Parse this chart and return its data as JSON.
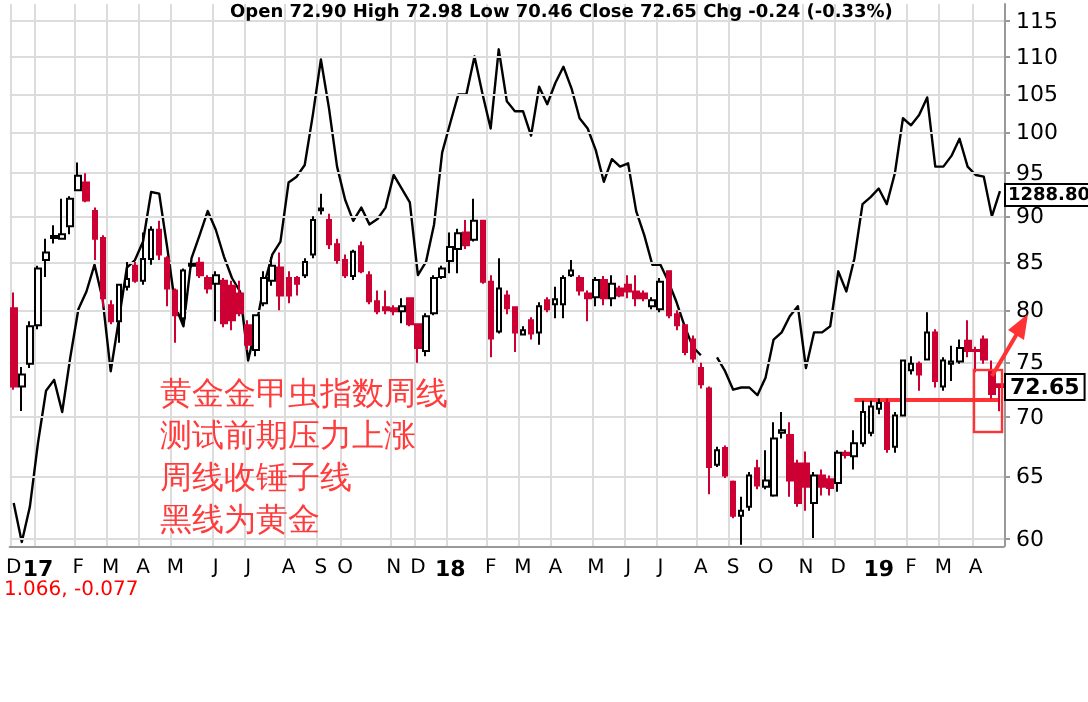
{
  "chart_data": {
    "type": "candlestick",
    "subtitle": "Open 72.90 High 72.98 Low 70.46 Close 72.65 Chg -0.24 (-0.33%)",
    "categories": [
      "D",
      null,
      null,
      "17",
      null,
      null,
      null,
      null,
      "F",
      null,
      null,
      null,
      "M",
      null,
      null,
      null,
      "A",
      null,
      null,
      null,
      "M",
      null,
      null,
      null,
      null,
      "J",
      null,
      null,
      null,
      "J",
      null,
      null,
      null,
      null,
      "A",
      null,
      null,
      null,
      "S",
      null,
      null,
      "O",
      null,
      null,
      null,
      null,
      null,
      "N",
      null,
      null,
      "D",
      null,
      null,
      null,
      "18",
      null,
      null,
      null,
      null,
      "F",
      null,
      null,
      null,
      "M",
      null,
      null,
      null,
      "A",
      null,
      null,
      null,
      null,
      "M",
      null,
      null,
      null,
      "J",
      null,
      null,
      null,
      "J",
      null,
      null,
      null,
      null,
      "A",
      null,
      null,
      null,
      "S",
      null,
      null,
      null,
      "O",
      null,
      null,
      null,
      null,
      "N",
      null,
      null,
      null,
      "D",
      null,
      null,
      null,
      null,
      "19",
      null,
      null,
      null,
      "F",
      null,
      null,
      null,
      "M",
      null,
      null,
      null,
      "A",
      null,
      null,
      null
    ],
    "series": [
      {
        "colors": [
          "#cc0033",
          "#ffffff",
          "#ffffff",
          "#ffffff",
          "#ffffff",
          "#ffffff",
          "#ffffff",
          "#ffffff",
          "#ffffff",
          "#cc0033",
          "#cc0033",
          "#cc0033",
          "#cc0033",
          "#ffffff",
          "#ffffff",
          "#cc0033",
          "#ffffff",
          "#ffffff",
          "#cc0033",
          "#cc0033",
          "#cc0033",
          "#ffffff",
          "#ffffff",
          "#cc0033",
          "#cc0033",
          "#ffffff",
          "#cc0033",
          "#cc0033",
          "#cc0033",
          "#cc0033",
          "#ffffff",
          "#ffffff",
          "#ffffff",
          "#cc0033",
          "#cc0033",
          "#cc0033",
          "#ffffff",
          "#ffffff",
          "#ffffff",
          "#cc0033",
          "#cc0033",
          "#cc0033",
          "#ffffff",
          "#cc0033",
          "#cc0033",
          "#cc0033",
          "#cc0033",
          "#cc0033",
          "#ffffff",
          "#cc0033",
          "#cc0033",
          "#ffffff",
          "#ffffff",
          "#ffffff",
          "#ffffff",
          "#ffffff",
          "#cc0033",
          "#ffffff",
          "#cc0033",
          "#cc0033",
          "#ffffff",
          "#cc0033",
          "#cc0033",
          "#ffffff",
          "#cc0033",
          "#ffffff",
          "#cc0033",
          "#ffffff",
          "#ffffff",
          "#ffffff",
          "#cc0033",
          "#cc0033",
          "#ffffff",
          "#cc0033",
          "#ffffff",
          "#cc0033",
          "#cc0033",
          "#cc0033",
          "#cc0033",
          "#ffffff",
          "#ffffff",
          "#cc0033",
          "#cc0033",
          "#cc0033",
          "#cc0033",
          "#cc0033",
          "#cc0033",
          "#ffffff",
          "#cc0033",
          "#cc0033",
          "#ffffff",
          "#ffffff",
          "#cc0033",
          "#ffffff",
          "#ffffff",
          "#ffffff",
          "#cc0033",
          "#cc0033",
          "#cc0033",
          "#ffffff",
          "#cc0033",
          "#cc0033",
          "#ffffff",
          "#cc0033",
          "#ffffff",
          "#ffffff",
          "#ffffff",
          "#ffffff",
          "#cc0033",
          "#ffffff",
          "#ffffff",
          "#ffffff",
          "#cc0033",
          "#ffffff",
          "#cc0033",
          "#ffffff",
          "#ffffff",
          "#ffffff",
          "#cc0033",
          "#cc0033",
          "#cc0033",
          "#cc0033",
          "#cc0033"
        ],
        "ohlc": [
          [
            80.2,
            81.8,
            72.4,
            72.7
          ],
          [
            72.7,
            74.5,
            70.5,
            73.8
          ],
          [
            74.8,
            78.9,
            74.4,
            78.4
          ],
          [
            78.5,
            84.6,
            78.1,
            84.3
          ],
          [
            85.2,
            87.5,
            83.4,
            86.0
          ],
          [
            87.6,
            89.0,
            87.0,
            87.8
          ],
          [
            87.5,
            92.0,
            87.5,
            88.0
          ],
          [
            88.9,
            92.3,
            88.0,
            92.0
          ],
          [
            93.0,
            96.3,
            92.9,
            94.7
          ],
          [
            93.9,
            95.0,
            91.6,
            91.8
          ],
          [
            90.6,
            91.0,
            85.2,
            87.5
          ],
          [
            87.6,
            87.9,
            80.3,
            81.2
          ],
          [
            80.5,
            81.0,
            78.6,
            78.9
          ],
          [
            78.9,
            82.7,
            76.8,
            82.6
          ],
          [
            82.4,
            85.0,
            82.0,
            83.2
          ],
          [
            84.6,
            85.0,
            82.8,
            83.0
          ],
          [
            83.0,
            88.2,
            82.6,
            85.3
          ],
          [
            85.3,
            88.9,
            84.7,
            88.5
          ],
          [
            88.5,
            89.5,
            85.2,
            85.8
          ],
          [
            85.4,
            85.6,
            80.4,
            82.2
          ],
          [
            82.0,
            82.2,
            76.8,
            79.5
          ],
          [
            79.2,
            84.3,
            78.7,
            84.1
          ],
          [
            84.6,
            85.2,
            84.4,
            84.8
          ],
          [
            84.9,
            85.5,
            83.3,
            83.6
          ],
          [
            83.3,
            83.6,
            81.7,
            82.2
          ],
          [
            82.7,
            84.0,
            78.9,
            83.6
          ],
          [
            83.0,
            83.3,
            78.3,
            78.7
          ],
          [
            82.5,
            83.0,
            78.0,
            79.0
          ],
          [
            81.7,
            83.0,
            79.4,
            79.7
          ],
          [
            78.5,
            79.0,
            76.1,
            76.6
          ],
          [
            76.1,
            79.6,
            75.5,
            79.5
          ],
          [
            80.7,
            84.0,
            80.4,
            83.3
          ],
          [
            83.0,
            85.5,
            82.5,
            84.6
          ],
          [
            84.4,
            86.0,
            80.0,
            81.5
          ],
          [
            83.3,
            84.0,
            80.7,
            81.5
          ],
          [
            83.3,
            83.5,
            81.5,
            82.7
          ],
          [
            83.6,
            85.4,
            83.3,
            85.0
          ],
          [
            85.8,
            90.0,
            85.4,
            89.6
          ],
          [
            90.7,
            92.6,
            90.2,
            90.9
          ],
          [
            89.6,
            90.3,
            86.4,
            86.9
          ],
          [
            86.9,
            87.5,
            84.8,
            85.2
          ],
          [
            85.2,
            85.8,
            83.3,
            83.6
          ],
          [
            83.5,
            86.3,
            83.1,
            86.1
          ],
          [
            86.7,
            87.2,
            83.8,
            84.0
          ],
          [
            83.6,
            84.0,
            80.6,
            80.9
          ],
          [
            80.9,
            82.0,
            79.6,
            79.9
          ],
          [
            80.3,
            82.0,
            79.6,
            80.0
          ],
          [
            80.2,
            80.5,
            79.5,
            79.9
          ],
          [
            79.9,
            81.2,
            78.7,
            80.4
          ],
          [
            81.2,
            81.3,
            78.4,
            78.6
          ],
          [
            78.6,
            78.7,
            74.9,
            76.3
          ],
          [
            76.0,
            79.7,
            75.5,
            79.4
          ],
          [
            79.7,
            83.6,
            79.5,
            83.3
          ],
          [
            83.4,
            84.6,
            83.2,
            84.3
          ],
          [
            85.1,
            88.2,
            83.8,
            86.6
          ],
          [
            86.4,
            88.6,
            83.8,
            88.1
          ],
          [
            88.2,
            89.6,
            86.4,
            86.8
          ],
          [
            87.4,
            92.0,
            87.2,
            89.5
          ],
          [
            89.5,
            89.5,
            82.7,
            82.9
          ],
          [
            82.9,
            83.6,
            75.4,
            77.2
          ],
          [
            77.9,
            85.4,
            77.7,
            82.2
          ],
          [
            81.5,
            82.0,
            79.6,
            80.2
          ],
          [
            80.3,
            80.4,
            75.9,
            77.8
          ],
          [
            77.6,
            78.4,
            77.5,
            78.0
          ],
          [
            79.0,
            79.3,
            77.1,
            77.7
          ],
          [
            77.8,
            80.8,
            76.6,
            80.4
          ],
          [
            81.0,
            81.3,
            79.8,
            80.1
          ],
          [
            80.6,
            82.4,
            79.2,
            81.1
          ],
          [
            80.6,
            83.6,
            79.2,
            83.3
          ],
          [
            83.6,
            85.2,
            83.4,
            84.1
          ],
          [
            83.3,
            83.6,
            81.5,
            82.0
          ],
          [
            81.7,
            82.0,
            78.9,
            81.2
          ],
          [
            81.3,
            83.4,
            80.4,
            83.1
          ],
          [
            83.1,
            83.5,
            80.5,
            81.2
          ],
          [
            81.2,
            83.6,
            80.4,
            82.7
          ],
          [
            82.2,
            82.5,
            81.3,
            81.5
          ],
          [
            82.6,
            83.6,
            81.2,
            81.9
          ],
          [
            81.9,
            83.6,
            80.4,
            81.2
          ],
          [
            81.7,
            82.0,
            80.9,
            81.2
          ],
          [
            80.4,
            81.3,
            80.1,
            81.0
          ],
          [
            80.1,
            83.3,
            79.8,
            82.9
          ],
          [
            84.0,
            84.1,
            79.2,
            79.5
          ],
          [
            79.6,
            80.0,
            78.0,
            78.5
          ],
          [
            78.5,
            78.6,
            75.6,
            75.9
          ],
          [
            77.1,
            77.5,
            74.9,
            75.3
          ],
          [
            74.4,
            74.9,
            72.5,
            72.9
          ],
          [
            72.5,
            72.7,
            63.5,
            65.7
          ],
          [
            65.9,
            67.4,
            65.7,
            67.1
          ],
          [
            67.3,
            67.5,
            64.8,
            65.0
          ],
          [
            64.5,
            64.6,
            61.6,
            61.8
          ],
          [
            61.8,
            63.3,
            59.6,
            62.2
          ],
          [
            62.5,
            65.3,
            62.2,
            65.0
          ],
          [
            65.6,
            66.3,
            63.9,
            64.2
          ],
          [
            64.1,
            67.1,
            63.9,
            64.6
          ],
          [
            63.4,
            69.5,
            63.3,
            68.1
          ],
          [
            68.6,
            70.4,
            68.1,
            68.8
          ],
          [
            68.4,
            69.5,
            63.3,
            64.6
          ],
          [
            66.0,
            66.3,
            62.5,
            62.8
          ],
          [
            66.0,
            67.0,
            62.2,
            64.1
          ],
          [
            62.8,
            65.3,
            60.1,
            65.0
          ],
          [
            65.0,
            65.5,
            63.4,
            64.1
          ],
          [
            64.7,
            65.0,
            63.4,
            64.0
          ],
          [
            64.4,
            67.1,
            63.7,
            66.9
          ],
          [
            66.9,
            67.1,
            66.4,
            66.7
          ],
          [
            66.6,
            68.8,
            65.5,
            67.7
          ],
          [
            67.7,
            71.4,
            67.4,
            70.4
          ],
          [
            68.6,
            71.4,
            68.3,
            70.9
          ],
          [
            70.7,
            71.6,
            70.2,
            71.2
          ],
          [
            71.2,
            71.6,
            66.9,
            67.2
          ],
          [
            67.4,
            70.4,
            66.9,
            70.1
          ],
          [
            70.1,
            75.2,
            70.0,
            75.1
          ],
          [
            74.2,
            75.5,
            73.8,
            74.8
          ],
          [
            74.8,
            75.0,
            72.3,
            73.8
          ],
          [
            75.2,
            79.8,
            75.1,
            77.8
          ],
          [
            77.8,
            78.1,
            72.6,
            73.2
          ],
          [
            72.7,
            75.4,
            72.3,
            75.1
          ],
          [
            74.8,
            76.5,
            73.2,
            75.0
          ],
          [
            75.0,
            77.1,
            74.8,
            76.3
          ],
          [
            77.0,
            79.0,
            75.4,
            76.0
          ],
          [
            76.1,
            76.4,
            74.0,
            76.0
          ],
          [
            77.1,
            77.5,
            74.8,
            75.2
          ],
          [
            74.1,
            75.1,
            71.6,
            72.0
          ],
          [
            72.9,
            72.98,
            70.46,
            72.65
          ]
        ]
      },
      {
        "type": "line",
        "color": "#000000",
        "values": [
          62.8,
          59.8,
          62.5,
          67.7,
          72.3,
          73.3,
          70.4,
          75.4,
          80.1,
          81.9,
          84.7,
          81.1,
          74.1,
          79.0,
          84.4,
          85.2,
          87.2,
          92.8,
          92.6,
          86.5,
          80.4,
          78.4,
          85.4,
          87.9,
          90.6,
          88.5,
          85.6,
          83.3,
          81.9,
          75.1,
          78.5,
          82.7,
          85.8,
          87.2,
          93.9,
          94.6,
          96.0,
          102.2,
          109.6,
          103.1,
          95.8,
          91.9,
          89.5,
          91.0,
          89.1,
          89.7,
          91.0,
          94.8,
          93.2,
          91.6,
          83.6,
          85.0,
          89.1,
          97.5,
          101.2,
          104.9,
          104.9,
          110.0,
          104.9,
          100.5,
          111.0,
          104.0,
          102.7,
          102.7,
          99.6,
          105.9,
          103.6,
          106.4,
          108.6,
          105.7,
          101.8,
          100.5,
          97.8,
          94.0,
          96.7,
          95.8,
          96.2,
          90.6,
          87.9,
          84.7,
          84.7,
          82.9,
          80.8,
          78.4,
          76.4,
          75.6,
          null,
          75.4,
          74.1,
          72.4,
          72.6,
          72.6,
          71.9,
          73.5,
          77.1,
          77.8,
          79.4,
          80.4,
          74.4,
          77.8,
          77.8,
          78.4,
          84.0,
          81.9,
          85.4,
          91.4,
          92.2,
          93.2,
          91.4,
          95.0,
          101.8,
          100.9,
          102.2,
          104.5,
          95.8,
          95.8,
          97.1,
          99.2,
          95.8,
          94.8,
          94.6,
          90.0,
          92.9
        ]
      }
    ],
    "ylim": [
      59.5,
      117.5
    ],
    "yticks": [
      60,
      65,
      70,
      75,
      80,
      85,
      90,
      95,
      100,
      105,
      110,
      115
    ],
    "log": "y",
    "grid": true,
    "marker": "none",
    "ref_lines": [
      {
        "axis": "y",
        "value": 71.5,
        "label": null,
        "color": "#ff3333"
      }
    ],
    "annotations": [
      "黄金金甲虫指数周线",
      "测试前期压力上涨",
      "周线收锤子线",
      "黑线为黄金",
      "1.066, -0.077",
      "1288.80",
      {
        "text": "72.65",
        "y": 72.65
      }
    ]
  }
}
